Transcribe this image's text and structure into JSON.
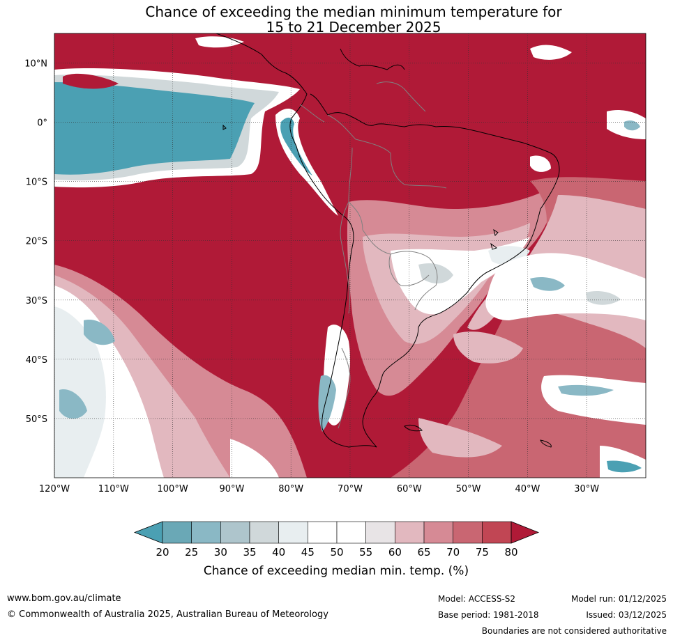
{
  "title_line1": "Chance of exceeding the median minimum temperature for",
  "title_line2": "15 to 21 December 2025",
  "map": {
    "lon_range": [
      -120,
      -20
    ],
    "lat_range": [
      -60,
      15
    ],
    "lat_ticks": [
      {
        "value": 10,
        "label": "10°N"
      },
      {
        "value": 0,
        "label": "0°"
      },
      {
        "value": -10,
        "label": "10°S"
      },
      {
        "value": -20,
        "label": "20°S"
      },
      {
        "value": -30,
        "label": "30°S"
      },
      {
        "value": -40,
        "label": "40°S"
      },
      {
        "value": -50,
        "label": "50°S"
      }
    ],
    "lon_ticks": [
      {
        "value": -120,
        "label": "120°W"
      },
      {
        "value": -110,
        "label": "110°W"
      },
      {
        "value": -100,
        "label": "100°W"
      },
      {
        "value": -90,
        "label": "90°W"
      },
      {
        "value": -80,
        "label": "80°W"
      },
      {
        "value": -70,
        "label": "70°W"
      },
      {
        "value": -60,
        "label": "60°W"
      },
      {
        "value": -50,
        "label": "50°W"
      },
      {
        "value": -40,
        "label": "40°W"
      },
      {
        "value": -30,
        "label": "30°W"
      }
    ],
    "colors": {
      "high": "#b01a37",
      "very_low": "#4ba0b3",
      "mid_high": "#d98d98"
    }
  },
  "colorbar": {
    "label": "Chance of exceeding median min. temp. (%)",
    "ticks": [
      "20",
      "25",
      "30",
      "35",
      "40",
      "45",
      "50",
      "55",
      "60",
      "65",
      "70",
      "75",
      "80"
    ],
    "colors": [
      "#4ba0b3",
      "#6aa8b6",
      "#8ab8c5",
      "#aec5cc",
      "#d0d8da",
      "#e8eef0",
      "#ffffff",
      "#ffffff",
      "#e8e4e6",
      "#e2b8bf",
      "#d68a95",
      "#c96672",
      "#c14654",
      "#b01a37"
    ]
  },
  "footer": {
    "website": "www.bom.gov.au/climate",
    "copyright": "© Commonwealth of Australia 2025, Australian Bureau of Meteorology",
    "model": "Model: ACCESS-S2",
    "base_period": "Base period: 1981-2018",
    "model_run": "Model run: 01/12/2025",
    "issued": "Issued: 03/12/2025",
    "disclaimer": "Boundaries are not considered authoritative"
  }
}
